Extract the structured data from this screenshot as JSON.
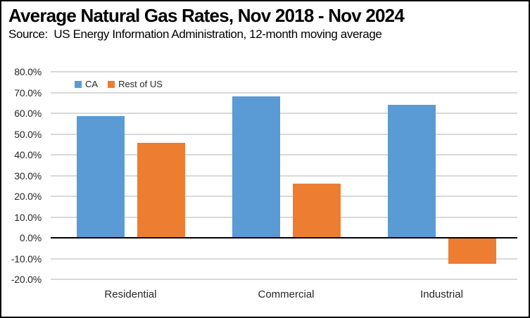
{
  "header": {
    "title": "Average Natural Gas Rates, Nov 2018 - Nov 2024",
    "subtitle": "Source:  US Energy Information Administration, 12-month moving average"
  },
  "legend": {
    "items": [
      {
        "label": "CA",
        "color": "#5B9BD5"
      },
      {
        "label": "Rest of US",
        "color": "#ED7D31"
      }
    ]
  },
  "chart_data": {
    "type": "bar",
    "title": "Average Natural Gas Rates, Nov 2018 - Nov 2024",
    "subtitle": "Source:  US Energy Information Administration, 12-month moving average",
    "categories": [
      "Residential",
      "Commercial",
      "Industrial"
    ],
    "series": [
      {
        "name": "CA",
        "color": "#5B9BD5",
        "values": [
          58.8,
          68.0,
          64.0
        ]
      },
      {
        "name": "Rest of US",
        "color": "#ED7D31",
        "values": [
          45.9,
          26.0,
          -12.5
        ]
      }
    ],
    "xlabel": "",
    "ylabel": "",
    "ylim": [
      -20,
      80
    ],
    "ytick_step": 10,
    "ytick_labels": [
      "80.0%",
      "70.0%",
      "60.0%",
      "50.0%",
      "40.0%",
      "30.0%",
      "20.0%",
      "10.0%",
      "0.0%",
      "-10.0%",
      "-20.0%"
    ],
    "grid": true,
    "legend_position": "top-left-inside",
    "colors": {
      "grid": "#D9D9D9",
      "zero_line": "#000000",
      "border": "#000000",
      "background": "#FFFFFF",
      "tick_text": "#262626"
    }
  }
}
